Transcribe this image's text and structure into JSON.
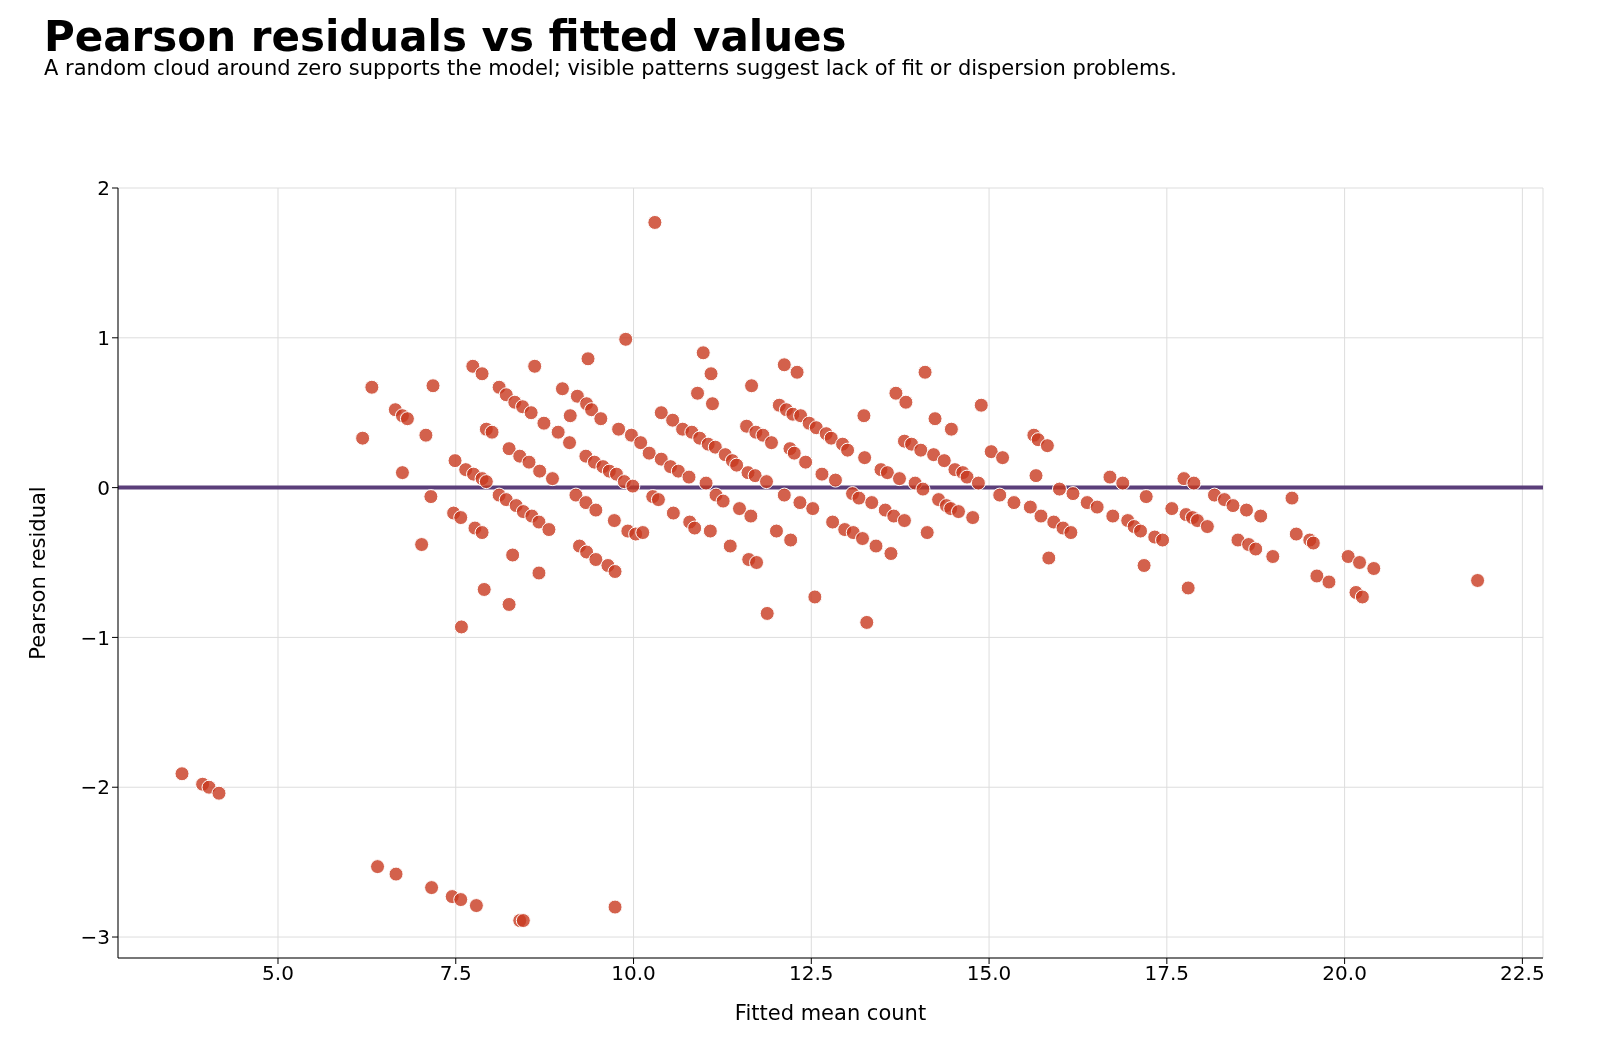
{
  "chart_data": {
    "type": "scatter",
    "title": "Pearson residuals vs fitted values",
    "subtitle": "A random cloud around zero supports the model; visible patterns suggest lack of fit or dispersion problems.",
    "xlabel": "Fitted mean count",
    "ylabel": "Pearson residual",
    "x": [
      6.19,
      6.32,
      6.65,
      6.75,
      6.82,
      6.75,
      7.08,
      7.18,
      7.15,
      7.02,
      7.49,
      7.47,
      7.57,
      7.58,
      7.74,
      7.87,
      7.64,
      7.75,
      7.87,
      7.93,
      7.77,
      7.87,
      7.9,
      7.93,
      8.01,
      8.11,
      8.21,
      8.33,
      8.44,
      8.56,
      8.11,
      8.21,
      8.25,
      8.4,
      8.53,
      8.35,
      8.45,
      8.57,
      8.67,
      8.81,
      8.3,
      8.25,
      8.61,
      8.67,
      8.74,
      8.68,
      8.86,
      8.94,
      9.0,
      9.11,
      9.1,
      9.19,
      9.24,
      9.21,
      9.34,
      9.41,
      9.36,
      9.33,
      9.45,
      9.33,
      9.47,
      9.34,
      9.47,
      9.54,
      9.57,
      9.66,
      9.64,
      9.76,
      9.73,
      9.74,
      9.79,
      9.89,
      9.87,
      9.92,
      9.97,
      10.03,
      10.1,
      10.13,
      9.99,
      10.22,
      10.27,
      10.35,
      10.39,
      10.3,
      10.39,
      10.52,
      10.55,
      10.63,
      10.56,
      10.69,
      10.78,
      10.82,
      10.79,
      10.86,
      10.93,
      10.9,
      10.98,
      11.02,
      11.05,
      11.08,
      11.15,
      11.09,
      11.11,
      11.16,
      11.26,
      11.29,
      11.36,
      11.39,
      11.45,
      11.49,
      11.61,
      11.62,
      11.65,
      11.59,
      11.66,
      11.72,
      11.71,
      11.73,
      11.82,
      11.87,
      11.88,
      11.94,
      12.01,
      12.05,
      12.12,
      12.15,
      12.24,
      12.12,
      12.2,
      12.26,
      12.21,
      12.3,
      12.35,
      12.34,
      12.42,
      12.47,
      12.52,
      12.55,
      12.57,
      12.65,
      12.71,
      12.78,
      12.84,
      12.8,
      12.94,
      13.01,
      12.97,
      13.08,
      13.09,
      13.17,
      13.22,
      13.24,
      13.25,
      13.28,
      13.35,
      13.41,
      13.48,
      13.57,
      13.54,
      13.62,
      13.69,
      13.66,
      13.74,
      13.81,
      13.83,
      13.81,
      13.91,
      13.96,
      14.04,
      14.07,
      14.1,
      14.13,
      14.22,
      14.24,
      14.29,
      14.37,
      14.4,
      14.46,
      14.47,
      14.52,
      14.57,
      14.63,
      14.69,
      14.77,
      14.85,
      14.89,
      15.03,
      15.15,
      15.19,
      15.35,
      15.58,
      15.63,
      15.69,
      15.66,
      15.73,
      15.82,
      15.84,
      15.91,
      15.99,
      16.04,
      16.15,
      16.18,
      16.38,
      16.52,
      16.7,
      16.74,
      16.88,
      16.95,
      17.04,
      17.13,
      17.18,
      17.21,
      17.33,
      17.44,
      17.57,
      17.74,
      17.77,
      17.8,
      17.86,
      17.88,
      17.93,
      18.07,
      18.17,
      18.31,
      18.43,
      18.5,
      18.62,
      18.65,
      18.75,
      18.82,
      18.99,
      19.26,
      19.32,
      19.51,
      19.56,
      19.61,
      19.78,
      20.05,
      20.21,
      20.16,
      20.25,
      20.41,
      21.87,
      3.65,
      3.94,
      4.03,
      4.17,
      6.4,
      6.66,
      7.16,
      7.45,
      7.57,
      7.79,
      8.4,
      8.45,
      9.74
    ],
    "values": [
      0.33,
      0.67,
      0.52,
      0.48,
      0.46,
      0.1,
      0.35,
      0.68,
      -0.06,
      -0.38,
      0.18,
      -0.17,
      -0.2,
      -0.93,
      0.81,
      0.76,
      0.12,
      0.09,
      0.06,
      0.04,
      -0.27,
      -0.3,
      -0.68,
      0.39,
      0.37,
      0.67,
      0.62,
      0.57,
      0.54,
      0.5,
      -0.05,
      -0.08,
      0.26,
      0.21,
      0.17,
      -0.12,
      -0.16,
      -0.19,
      -0.23,
      -0.28,
      -0.45,
      -0.78,
      0.81,
      -0.57,
      0.43,
      0.11,
      0.06,
      0.37,
      0.66,
      0.48,
      0.3,
      -0.05,
      -0.39,
      0.61,
      0.56,
      0.52,
      0.86,
      0.21,
      0.17,
      -0.1,
      -0.15,
      -0.43,
      -0.48,
      0.46,
      0.14,
      0.11,
      -0.52,
      0.09,
      -0.22,
      -0.56,
      0.39,
      0.99,
      0.04,
      -0.29,
      0.35,
      -0.31,
      0.3,
      -0.3,
      0.01,
      0.23,
      -0.06,
      -0.08,
      0.19,
      1.77,
      0.5,
      0.14,
      0.45,
      0.11,
      -0.17,
      0.39,
      0.07,
      0.37,
      -0.23,
      -0.27,
      0.33,
      0.63,
      0.9,
      0.03,
      0.29,
      -0.29,
      0.27,
      0.76,
      0.56,
      -0.05,
      -0.09,
      0.22,
      -0.39,
      0.18,
      0.15,
      -0.14,
      0.1,
      -0.48,
      -0.19,
      0.41,
      0.68,
      0.37,
      0.08,
      -0.5,
      0.35,
      0.04,
      -0.84,
      0.3,
      -0.29,
      0.55,
      0.82,
      0.52,
      0.49,
      -0.05,
      0.26,
      0.23,
      -0.35,
      0.77,
      0.48,
      -0.1,
      0.17,
      0.43,
      -0.14,
      -0.73,
      0.4,
      0.09,
      0.36,
      0.33,
      0.05,
      -0.23,
      0.29,
      0.25,
      -0.28,
      -0.04,
      -0.3,
      -0.07,
      -0.34,
      0.48,
      0.2,
      -0.9,
      -0.1,
      -0.39,
      0.12,
      0.1,
      -0.15,
      -0.44,
      0.63,
      -0.19,
      0.06,
      -0.22,
      0.57,
      0.31,
      0.29,
      0.03,
      0.25,
      -0.01,
      0.77,
      -0.3,
      0.22,
      0.46,
      -0.08,
      0.18,
      -0.12,
      -0.14,
      0.39,
      0.12,
      -0.16,
      0.1,
      0.07,
      -0.2,
      0.03,
      0.55,
      0.24,
      -0.05,
      0.2,
      -0.1,
      -0.13,
      0.35,
      0.32,
      0.08,
      -0.19,
      0.28,
      -0.47,
      -0.23,
      -0.01,
      -0.27,
      -0.3,
      -0.04,
      -0.1,
      -0.13,
      0.07,
      -0.19,
      0.03,
      -0.22,
      -0.26,
      -0.29,
      -0.52,
      -0.06,
      -0.33,
      -0.35,
      -0.14,
      0.06,
      -0.18,
      -0.67,
      -0.2,
      0.03,
      -0.22,
      -0.26,
      -0.05,
      -0.08,
      -0.12,
      -0.35,
      -0.15,
      -0.38,
      -0.41,
      -0.19,
      -0.46,
      -0.07,
      -0.31,
      -0.35,
      -0.37,
      -0.59,
      -0.63,
      -0.46,
      -0.5,
      -0.7,
      -0.73,
      -0.54,
      -0.62,
      -1.91,
      -1.98,
      -2.0,
      -2.04,
      -2.53,
      -2.58,
      -2.67,
      -2.73,
      -2.75,
      -2.79,
      -2.89,
      -2.89,
      -2.8
    ],
    "color": "#c8391f",
    "marker": "circle",
    "xlim": [
      2.75,
      22.79
    ],
    "xticks": [
      {
        "value": 5,
        "label": "5.0"
      },
      {
        "value": 7.5,
        "label": "7.5"
      },
      {
        "value": 10,
        "label": "10.0"
      },
      {
        "value": 12.5,
        "label": "12.5"
      },
      {
        "value": 15,
        "label": "15.0"
      },
      {
        "value": 17.5,
        "label": "17.5"
      },
      {
        "value": 20,
        "label": "20.0"
      },
      {
        "value": 22.5,
        "label": "22.5"
      }
    ],
    "ylim": [
      -3.14,
      2
    ],
    "yticks": [
      {
        "value": -3,
        "label": "−3"
      },
      {
        "value": -2,
        "label": "−2"
      },
      {
        "value": -1,
        "label": "−1"
      },
      0,
      1,
      2
    ],
    "ref_lines": [
      {
        "axis": "y",
        "value": 0,
        "color": "#5b3f7a"
      }
    ],
    "grid": true
  }
}
